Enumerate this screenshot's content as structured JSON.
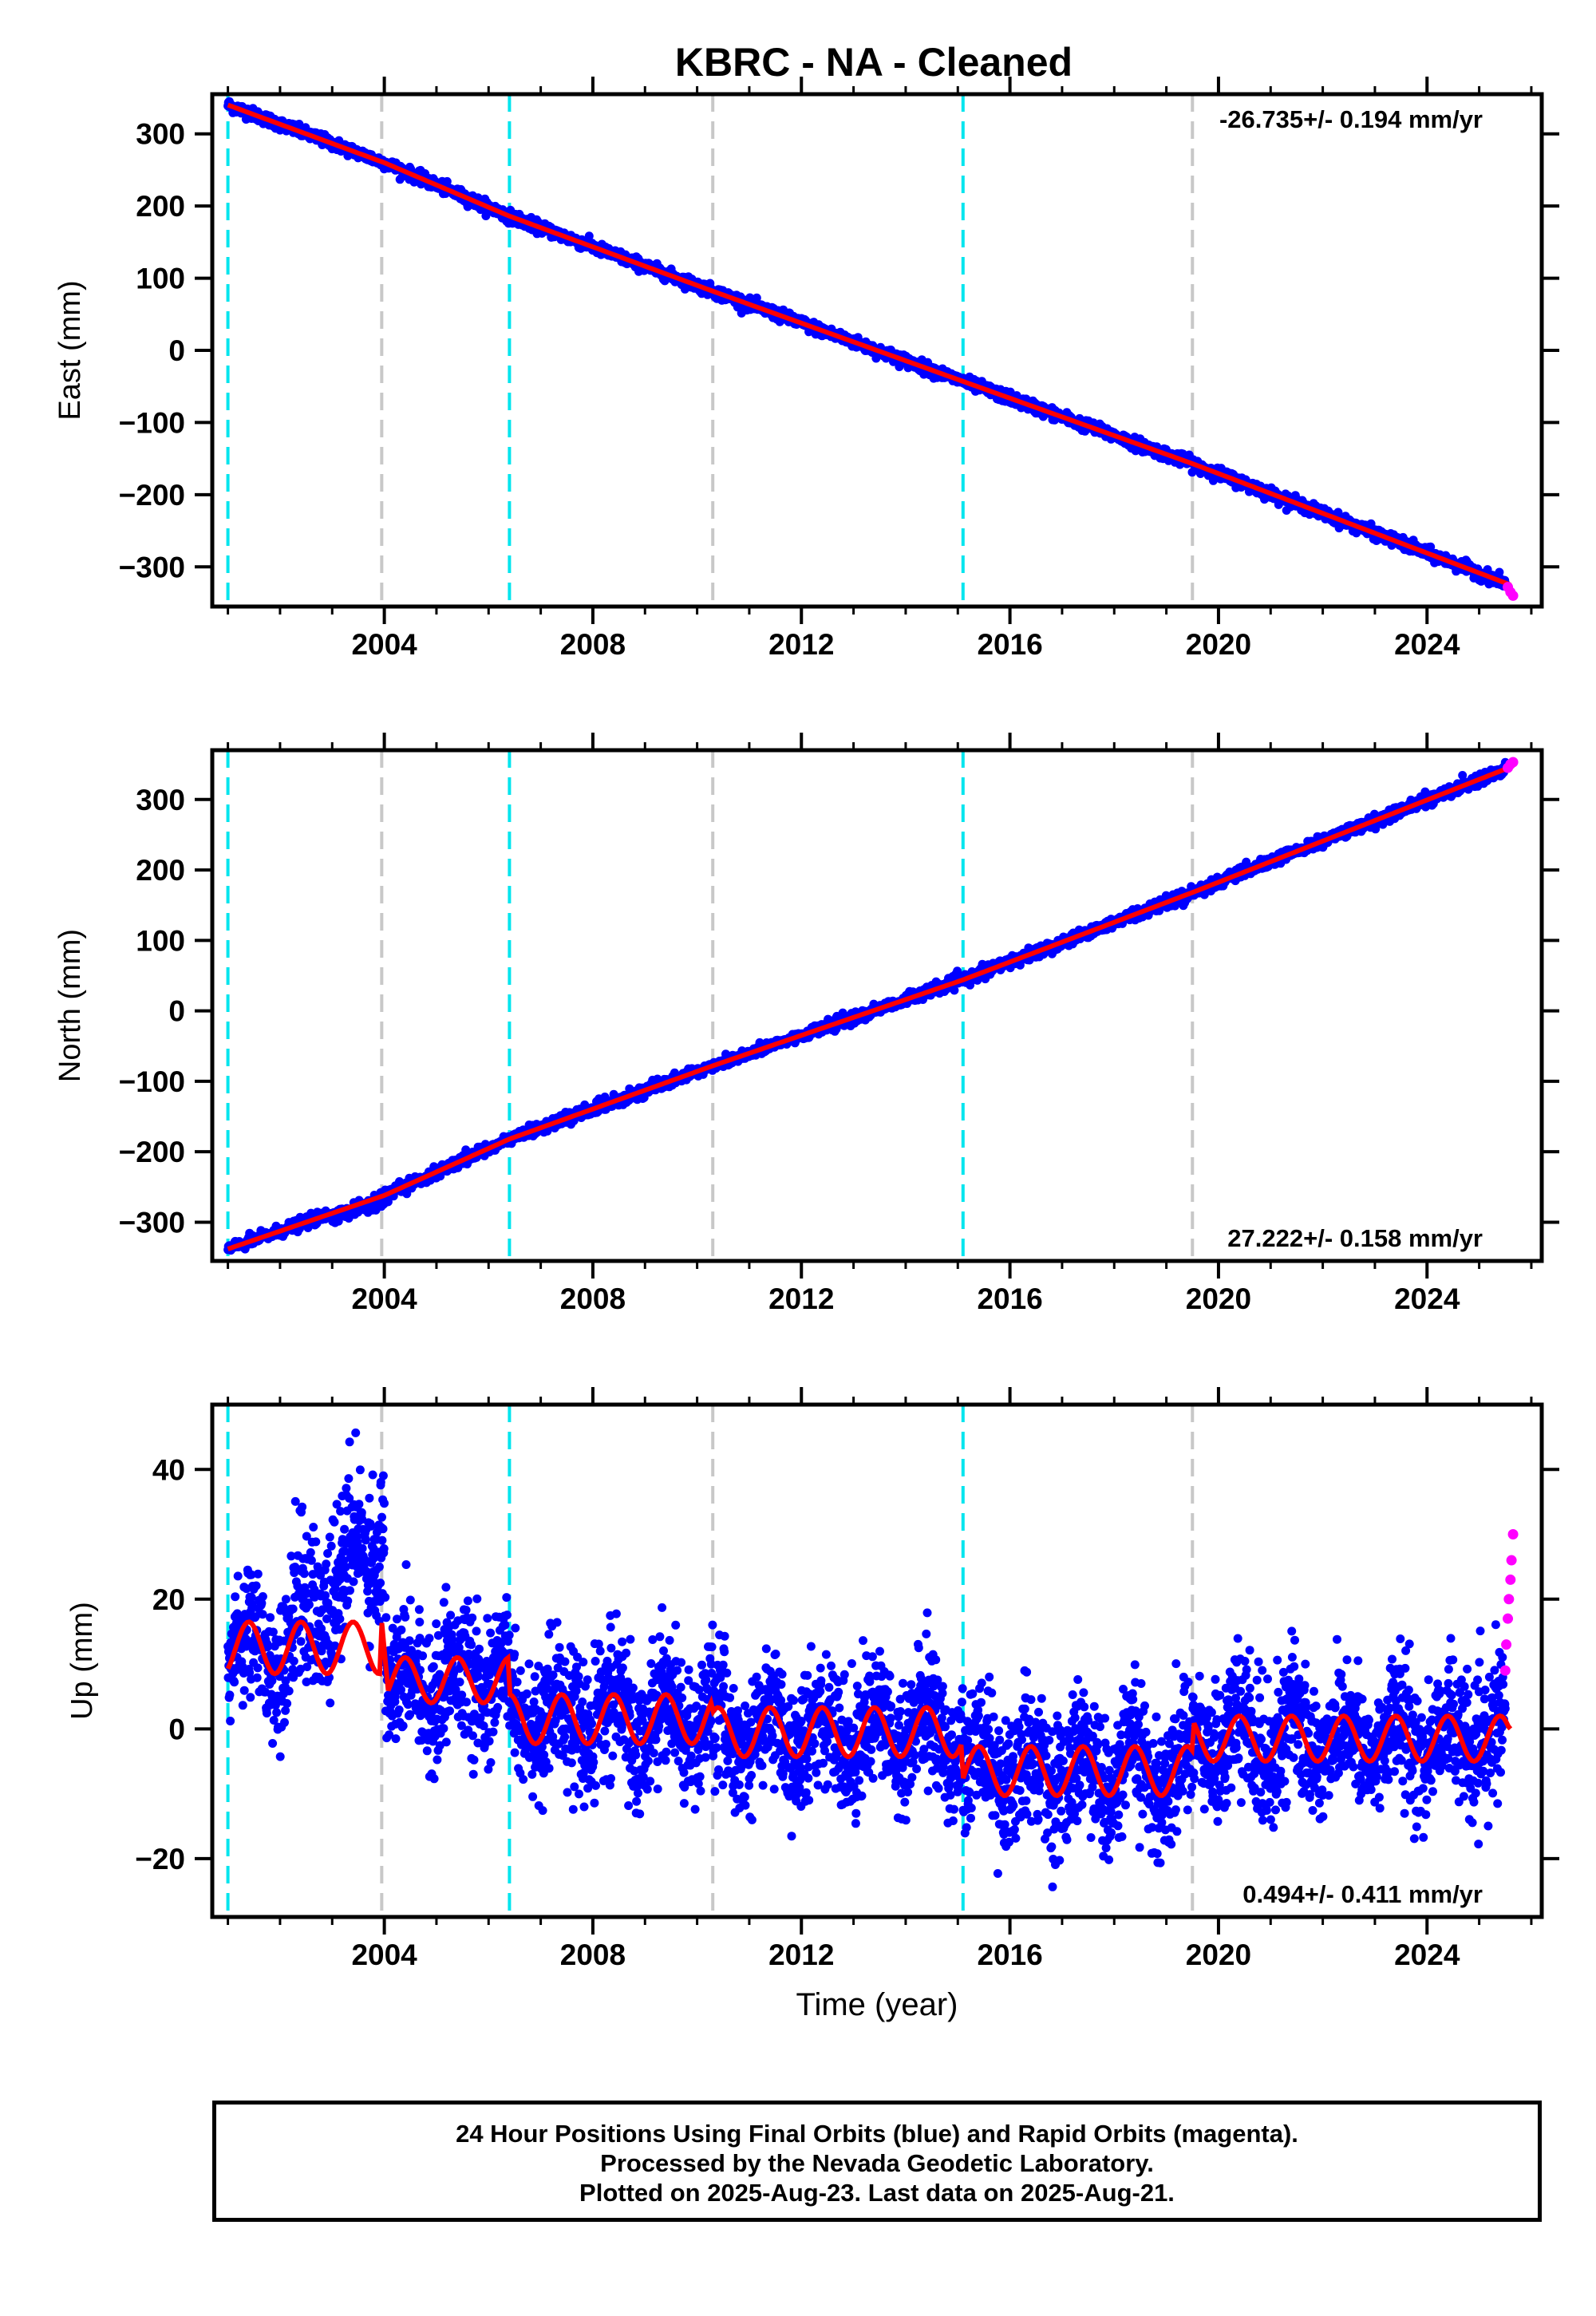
{
  "title": "KBRC  - NA - Cleaned",
  "colors": {
    "final_orbits": "#0000ff",
    "rapid_orbits": "#ff00ff",
    "model": "#ff0000",
    "equipment_change": "#00e5ee",
    "other_event": "#c8c8c8"
  },
  "footer": {
    "line1": "24 Hour Positions Using Final Orbits (blue) and Rapid Orbits (magenta).",
    "line2": "Processed by the Nevada Geodetic Laboratory.",
    "line3": "Plotted on 2025-Aug-23. Last data on 2025-Aug-21."
  },
  "chart_data": [
    {
      "type": "scatter",
      "ylabel": "East (mm)",
      "xlabel": "",
      "xlim": [
        2000.7,
        2026.2
      ],
      "ylim": [
        -355,
        355
      ],
      "xticks": [
        2004,
        2008,
        2012,
        2016,
        2020,
        2024
      ],
      "xtick_labels": [
        "2004",
        "2008",
        "2012",
        "2016",
        "2020",
        "2024"
      ],
      "yticks": [
        -300,
        -200,
        -100,
        0,
        100,
        200,
        300
      ],
      "ytick_labels": [
        "−300",
        "−200",
        "−100",
        "0",
        "100",
        "200",
        "300"
      ],
      "rate_label": "-26.735+/- 0.194 mm/yr",
      "rate_position": "top-right",
      "model_points": [
        [
          2001.0,
          340
        ],
        [
          2004.0,
          260
        ],
        [
          2006.4,
          186
        ],
        [
          2010.3,
          82
        ],
        [
          2015.1,
          -43
        ],
        [
          2019.5,
          -157
        ],
        [
          2025.6,
          -325
        ]
      ],
      "final_range": [
        2001.0,
        2025.5
      ],
      "rapid_points": [
        [
          2025.55,
          -328
        ],
        [
          2025.6,
          -335
        ],
        [
          2025.65,
          -340
        ]
      ],
      "event_lines": [
        {
          "x": 2001.0,
          "kind": "equipment"
        },
        {
          "x": 2003.95,
          "kind": "other"
        },
        {
          "x": 2006.4,
          "kind": "equipment"
        },
        {
          "x": 2010.3,
          "kind": "other"
        },
        {
          "x": 2015.1,
          "kind": "equipment"
        },
        {
          "x": 2019.5,
          "kind": "other"
        }
      ]
    },
    {
      "type": "scatter",
      "ylabel": "North (mm)",
      "xlabel": "",
      "xlim": [
        2000.7,
        2026.2
      ],
      "ylim": [
        -355,
        370
      ],
      "xticks": [
        2004,
        2008,
        2012,
        2016,
        2020,
        2024
      ],
      "xtick_labels": [
        "2004",
        "2008",
        "2012",
        "2016",
        "2020",
        "2024"
      ],
      "yticks": [
        -300,
        -200,
        -100,
        0,
        100,
        200,
        300
      ],
      "ytick_labels": [
        "−300",
        "−200",
        "−100",
        "0",
        "100",
        "200",
        "300"
      ],
      "rate_label": "27.222+/- 0.158 mm/yr",
      "rate_position": "bottom-right",
      "model_points": [
        [
          2001.0,
          -338
        ],
        [
          2004.0,
          -262
        ],
        [
          2006.4,
          -182
        ],
        [
          2010.3,
          -78
        ],
        [
          2015.1,
          44
        ],
        [
          2019.5,
          168
        ],
        [
          2025.6,
          346
        ]
      ],
      "final_range": [
        2001.0,
        2025.5
      ],
      "rapid_points": [
        [
          2025.55,
          345
        ],
        [
          2025.6,
          350
        ],
        [
          2025.65,
          353
        ]
      ],
      "event_lines": [
        {
          "x": 2001.0,
          "kind": "equipment"
        },
        {
          "x": 2003.95,
          "kind": "other"
        },
        {
          "x": 2006.4,
          "kind": "equipment"
        },
        {
          "x": 2010.3,
          "kind": "other"
        },
        {
          "x": 2015.1,
          "kind": "equipment"
        },
        {
          "x": 2019.5,
          "kind": "other"
        }
      ]
    },
    {
      "type": "scatter",
      "ylabel": "Up (mm)",
      "xlabel": "Time (year)",
      "xlim": [
        2000.7,
        2026.2
      ],
      "ylim": [
        -29,
        50
      ],
      "xticks": [
        2004,
        2008,
        2012,
        2016,
        2020,
        2024
      ],
      "xtick_labels": [
        "2004",
        "2008",
        "2012",
        "2016",
        "2020",
        "2024"
      ],
      "yticks": [
        -20,
        0,
        20,
        40
      ],
      "ytick_labels": [
        "−20",
        "0",
        "20",
        "40"
      ],
      "rate_label": "0.494+/- 0.411 mm/yr",
      "rate_position": "bottom-right",
      "model_segments": [
        {
          "x0": 2001.0,
          "x1": 2003.95,
          "base": 12.5,
          "amp": 4.0
        },
        {
          "x0": 2003.95,
          "x1": 2004.05,
          "base": 12.5,
          "amp": 4.0,
          "drop_to": 8.0
        },
        {
          "x0": 2004.05,
          "x1": 2006.4,
          "base": 7.5,
          "amp": 3.5
        },
        {
          "x0": 2006.4,
          "x1": 2010.3,
          "base": 1.5,
          "amp": 3.8
        },
        {
          "x0": 2010.3,
          "x1": 2015.1,
          "base": -0.5,
          "amp": 3.8
        },
        {
          "x0": 2015.1,
          "x1": 2019.5,
          "base": -6.5,
          "amp": 3.8
        },
        {
          "x0": 2019.5,
          "x1": 2025.6,
          "base": -1.5,
          "amp": 3.5
        }
      ],
      "final_range": [
        2001.0,
        2025.5
      ],
      "rapid_points": [
        [
          2025.5,
          9
        ],
        [
          2025.52,
          13
        ],
        [
          2025.55,
          17
        ],
        [
          2025.57,
          20
        ],
        [
          2025.6,
          23
        ],
        [
          2025.62,
          26
        ],
        [
          2025.65,
          30
        ]
      ],
      "event_lines": [
        {
          "x": 2001.0,
          "kind": "equipment"
        },
        {
          "x": 2003.95,
          "kind": "other"
        },
        {
          "x": 2006.4,
          "kind": "equipment"
        },
        {
          "x": 2010.3,
          "kind": "other"
        },
        {
          "x": 2015.1,
          "kind": "equipment"
        },
        {
          "x": 2019.5,
          "kind": "other"
        }
      ]
    }
  ]
}
